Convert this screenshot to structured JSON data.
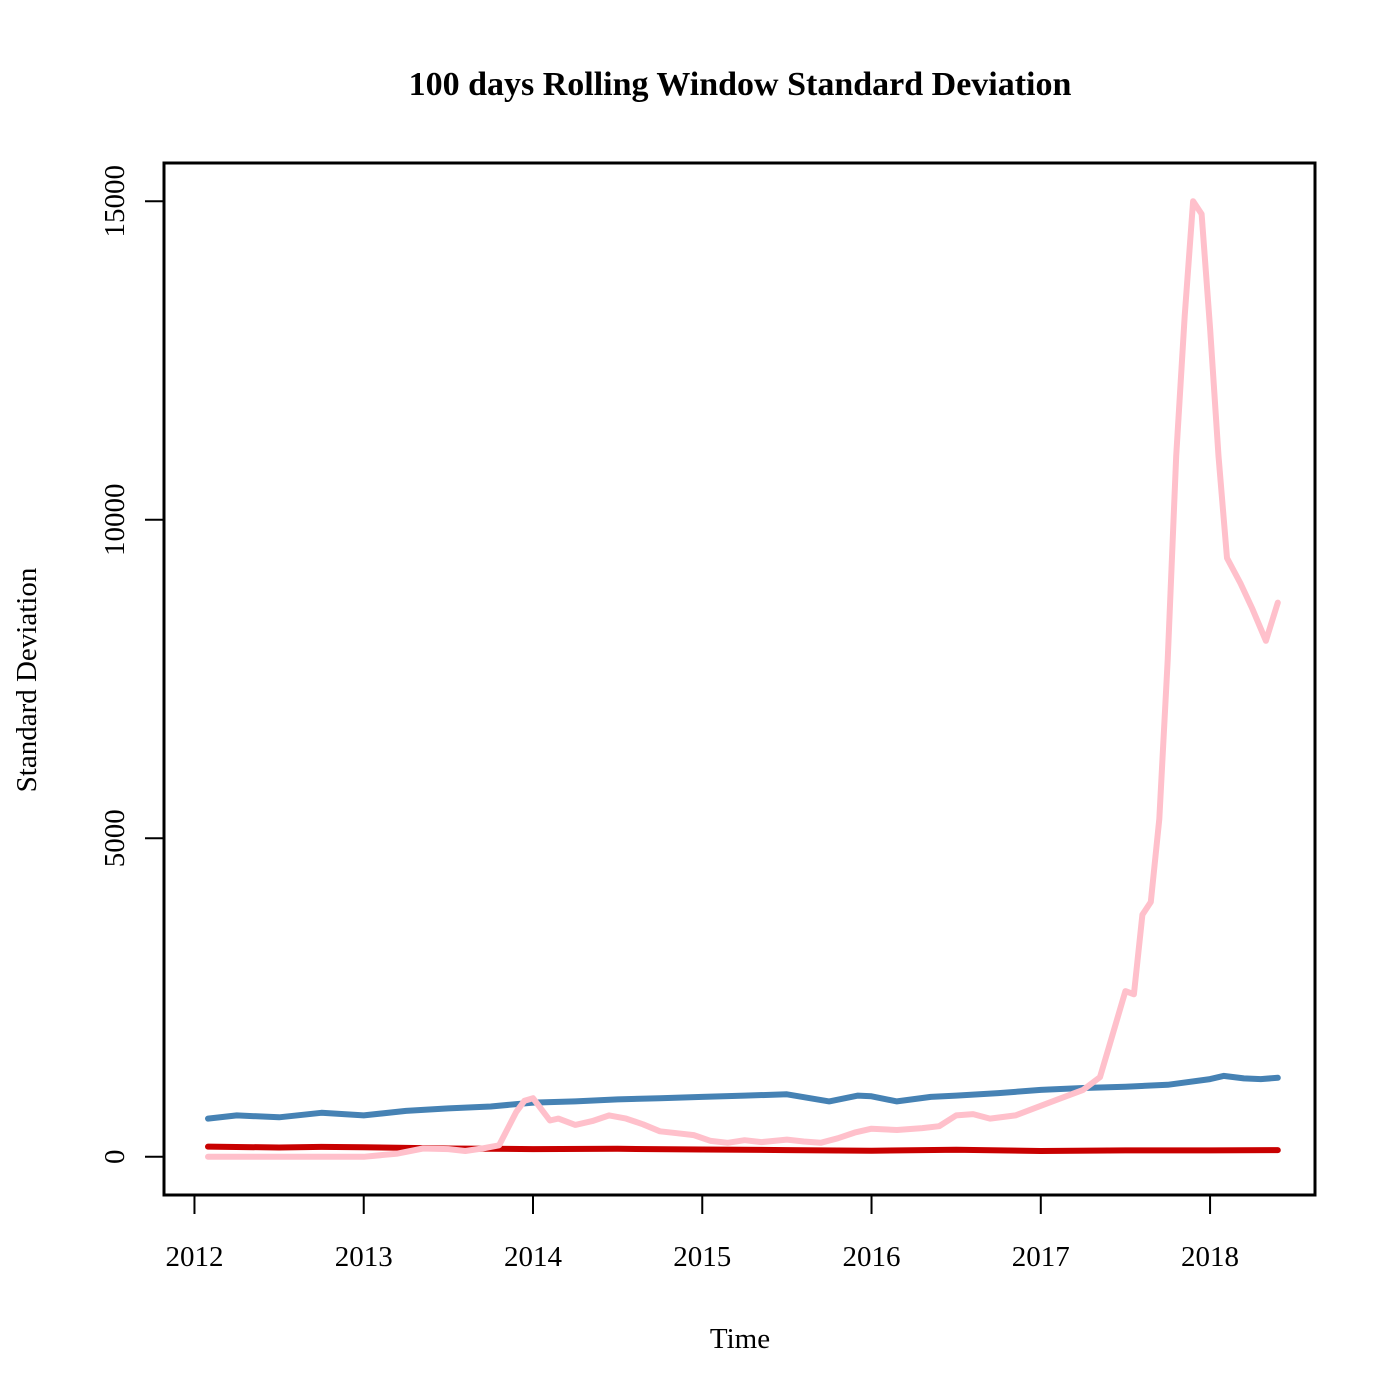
{
  "chart_data": {
    "type": "line",
    "title": "100 days Rolling Window Standard Deviation",
    "xlabel": "Time",
    "ylabel": "Standard Deviation",
    "xlim": [
      2011.82,
      2018.62
    ],
    "ylim": [
      -600,
      15600
    ],
    "x_ticks": [
      2012,
      2013,
      2014,
      2015,
      2016,
      2017,
      2018
    ],
    "x_tick_labels": [
      "2012",
      "2013",
      "2014",
      "2015",
      "2016",
      "2017",
      "2018"
    ],
    "y_ticks": [
      0,
      5000,
      10000,
      15000
    ],
    "y_tick_labels": [
      "0",
      "5000",
      "10000",
      "15000"
    ],
    "grid": false,
    "series": [
      {
        "color": "#C80000",
        "x": [
          2012.08,
          2012.5,
          2012.75,
          2013.0,
          2013.5,
          2014.0,
          2014.5,
          2015.0,
          2015.5,
          2016.0,
          2016.5,
          2017.0,
          2017.5,
          2018.0,
          2018.4
        ],
        "values": [
          160,
          145,
          155,
          150,
          130,
          120,
          125,
          115,
          105,
          95,
          110,
          90,
          100,
          100,
          105
        ]
      },
      {
        "color": "#4682B4",
        "x": [
          2012.08,
          2012.25,
          2012.5,
          2012.75,
          2013.0,
          2013.25,
          2013.5,
          2013.75,
          2014.0,
          2014.25,
          2014.5,
          2014.75,
          2015.0,
          2015.25,
          2015.5,
          2015.75,
          2015.92,
          2016.0,
          2016.15,
          2016.35,
          2016.5,
          2016.75,
          2017.0,
          2017.25,
          2017.5,
          2017.75,
          2018.0,
          2018.08,
          2018.2,
          2018.3,
          2018.4
        ],
        "values": [
          600,
          650,
          620,
          690,
          650,
          720,
          760,
          790,
          850,
          870,
          900,
          920,
          940,
          960,
          980,
          870,
          960,
          950,
          870,
          940,
          960,
          1000,
          1050,
          1080,
          1100,
          1130,
          1220,
          1270,
          1230,
          1220,
          1240
        ]
      },
      {
        "color": "#FFC0CB",
        "x": [
          2012.08,
          2012.5,
          2013.0,
          2013.2,
          2013.35,
          2013.5,
          2013.6,
          2013.7,
          2013.8,
          2013.9,
          2013.95,
          2014.0,
          2014.1,
          2014.15,
          2014.25,
          2014.35,
          2014.45,
          2014.55,
          2014.65,
          2014.75,
          2014.85,
          2014.95,
          2015.05,
          2015.15,
          2015.25,
          2015.35,
          2015.5,
          2015.6,
          2015.7,
          2015.8,
          2015.9,
          2016.0,
          2016.15,
          2016.3,
          2016.4,
          2016.5,
          2016.6,
          2016.7,
          2016.85,
          2017.0,
          2017.1,
          2017.25,
          2017.35,
          2017.4,
          2017.5,
          2017.55,
          2017.6,
          2017.65,
          2017.7,
          2017.75,
          2017.8,
          2017.85,
          2017.9,
          2017.95,
          2018.0,
          2018.05,
          2018.1,
          2018.18,
          2018.25,
          2018.33,
          2018.4
        ],
        "values": [
          0,
          0,
          0,
          50,
          130,
          120,
          90,
          130,
          180,
          700,
          880,
          920,
          570,
          600,
          500,
          560,
          650,
          600,
          510,
          400,
          370,
          340,
          250,
          220,
          260,
          230,
          270,
          240,
          220,
          290,
          380,
          440,
          420,
          450,
          480,
          650,
          670,
          600,
          650,
          800,
          900,
          1050,
          1250,
          1700,
          2600,
          2550,
          3800,
          4000,
          5300,
          7800,
          11000,
          13200,
          15000,
          14800,
          13000,
          11000,
          9400,
          9000,
          8600,
          8100,
          8700
        ]
      }
    ]
  }
}
